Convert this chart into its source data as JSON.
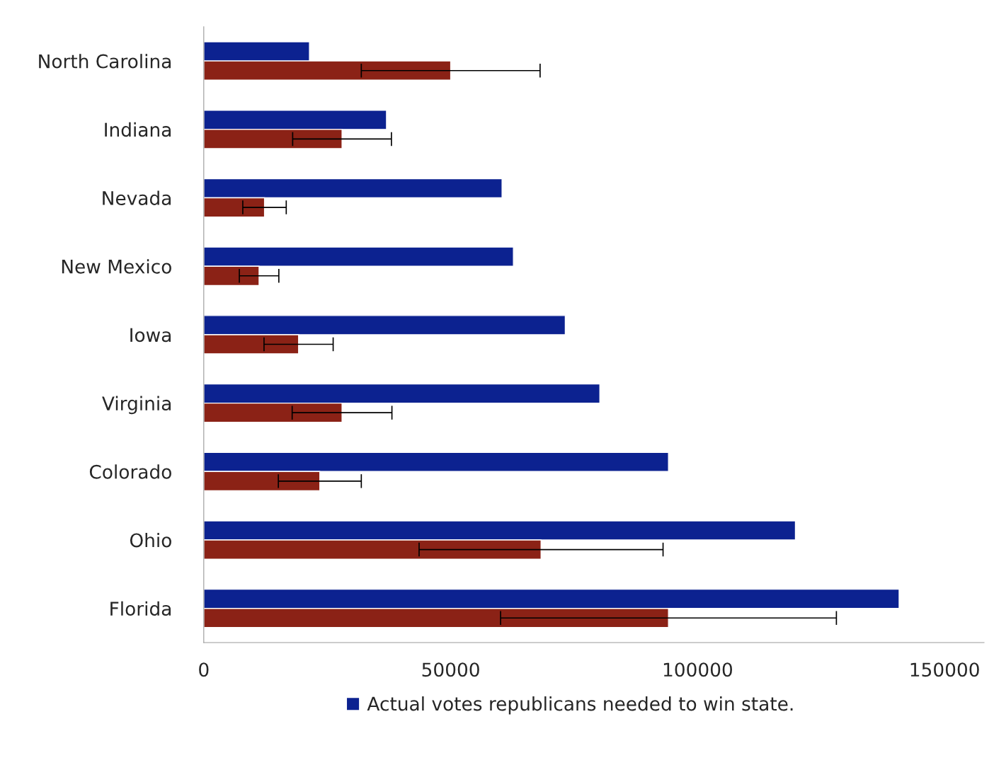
{
  "chart_data": {
    "type": "bar",
    "orientation": "horizontal",
    "categories": [
      "North Carolina",
      "Indiana",
      "Nevada",
      "New Mexico",
      "Iowa",
      "Virginia",
      "Colorado",
      "Ohio",
      "Florida"
    ],
    "series": [
      {
        "name": "Actual votes republicans needed to win state.",
        "color": "#0c2290",
        "values": [
          21400,
          37000,
          60400,
          62700,
          73200,
          80200,
          94100,
          119800,
          140800
        ]
      },
      {
        "color": "#8b2216",
        "values": [
          50000,
          28000,
          12300,
          11200,
          19200,
          28000,
          23500,
          68300,
          94100
        ],
        "errors": [
          18100,
          10000,
          4400,
          4000,
          7000,
          10100,
          8400,
          24700,
          34000
        ]
      }
    ],
    "xlim": [
      0,
      158000
    ],
    "xticks": [
      0,
      50000,
      100000,
      150000
    ],
    "grid": false,
    "legend": "bottom"
  }
}
